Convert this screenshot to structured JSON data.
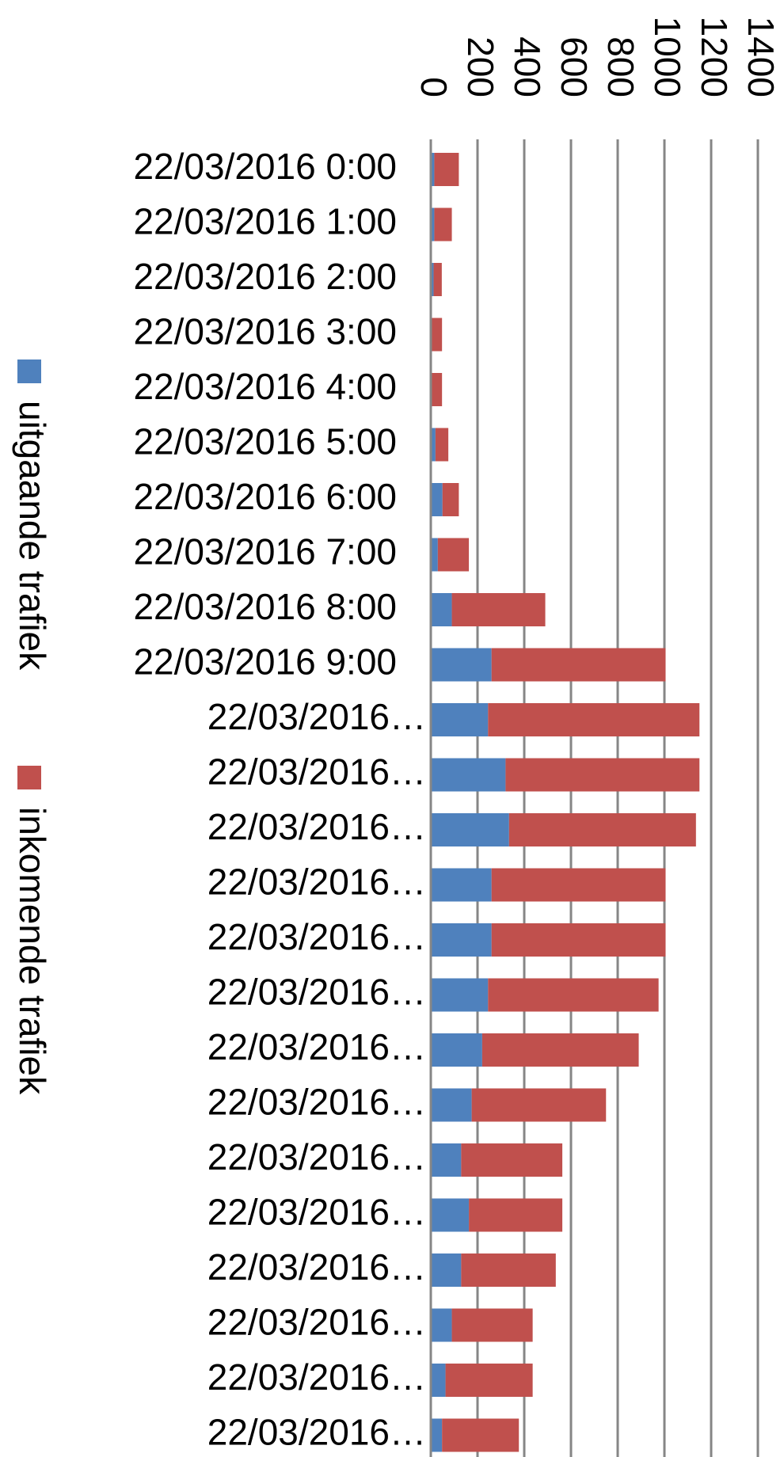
{
  "chart_data": {
    "type": "stacked-bar-horizontal",
    "categories": [
      "22/03/2016 0:00",
      "22/03/2016 1:00",
      "22/03/2016 2:00",
      "22/03/2016 3:00",
      "22/03/2016 4:00",
      "22/03/2016 5:00",
      "22/03/2016 6:00",
      "22/03/2016 7:00",
      "22/03/2016 8:00",
      "22/03/2016 9:00",
      "22/03/2016…",
      "22/03/2016…",
      "22/03/2016…",
      "22/03/2016…",
      "22/03/2016…",
      "22/03/2016…",
      "22/03/2016…",
      "22/03/2016…",
      "22/03/2016…",
      "22/03/2016…",
      "22/03/2016…",
      "22/03/2016…",
      "22/03/2016…",
      "22/03/2016…"
    ],
    "series": [
      {
        "name": "uitgaande trafiek",
        "color": "#4f81bd",
        "values": [
          15,
          15,
          12,
          5,
          5,
          20,
          50,
          30,
          90,
          260,
          245,
          320,
          335,
          260,
          260,
          245,
          220,
          175,
          130,
          163,
          130,
          90,
          63,
          48
        ]
      },
      {
        "name": "inkomende trafiek",
        "color": "#c0504d",
        "values": [
          105,
          75,
          35,
          43,
          43,
          55,
          70,
          133,
          400,
          745,
          905,
          830,
          800,
          745,
          745,
          730,
          670,
          575,
          433,
          400,
          405,
          346,
          373,
          329
        ]
      }
    ],
    "xlim": [
      0,
      1400
    ],
    "xticks": [
      0,
      200,
      400,
      600,
      800,
      1000,
      1200,
      1400
    ],
    "grid": true,
    "legend": "left"
  }
}
